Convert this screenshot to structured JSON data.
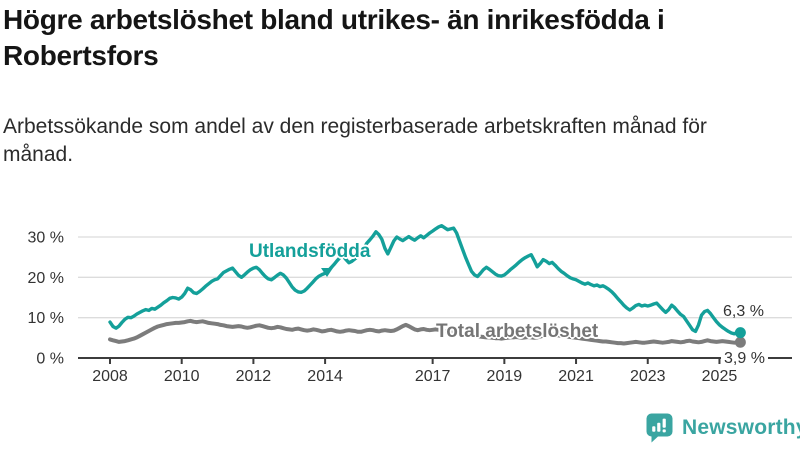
{
  "header": {
    "title": "Högre arbetslöshet bland utrikes- än inrikesfödda i Robertsfors",
    "subtitle": "Arbetssökande som andel av den registerbaserade arbetskraften månad för månad."
  },
  "footer": {
    "brand": "Newsworthy",
    "brand_color": "#3aa5a1",
    "icon": "newsworthy-speech-bubble-bar-chart-icon"
  },
  "colors": {
    "foreign_born_line": "#14a09a",
    "total_line": "#7c7c7c",
    "total_label_text": "#757575",
    "axis": "#3c3c3c",
    "grid": "#dcdcdc",
    "tick_text": "#333333",
    "end_label_text": "#333333"
  },
  "chart_data": {
    "type": "line",
    "title": "Högre arbetslöshet bland utrikes- än inrikesfödda i Robertsfors",
    "subtitle": "Arbetssökande som andel av den registerbaserade arbetskraften månad för månad.",
    "unit": "%",
    "grid": "horizontal-only",
    "legend_position": "inline-labels-on-lines",
    "x_start_year": 2008,
    "x_step_months": 1,
    "x_end_label_year": 2025,
    "xlim": [
      2007.9,
      2026.1
    ],
    "ylim": [
      0,
      34
    ],
    "xticks": [
      2008,
      2010,
      2012,
      2014,
      2017,
      2019,
      2021,
      2023,
      2025
    ],
    "yticks": [
      0,
      10,
      20,
      30
    ],
    "ytick_labels": [
      "0 %",
      "10 %",
      "20 %",
      "30 %"
    ],
    "series": [
      {
        "name": "Utlandsfödda",
        "color": "#14a09a",
        "end_value": 6.3,
        "end_label": "6,3 %",
        "values_by_year": [
          {
            "year": 2008,
            "values": [
              8.9,
              7.8,
              7.4,
              7.9,
              8.8,
              9.6,
              10.1,
              10.0,
              10.4,
              10.9,
              11.3,
              11.7
            ]
          },
          {
            "year": 2009,
            "values": [
              12.0,
              11.8,
              12.3,
              12.1,
              12.6,
              13.1,
              13.7,
              14.2,
              14.8,
              15.0,
              14.9,
              14.6
            ]
          },
          {
            "year": 2010,
            "values": [
              15.1,
              16.0,
              17.3,
              16.9,
              16.2,
              16.0,
              16.5,
              17.1,
              17.8,
              18.4,
              19.0,
              19.4
            ]
          },
          {
            "year": 2011,
            "values": [
              19.6,
              20.4,
              21.2,
              21.6,
              22.0,
              22.3,
              21.4,
              20.5,
              20.0,
              20.6,
              21.3,
              21.9
            ]
          },
          {
            "year": 2012,
            "values": [
              22.3,
              22.5,
              21.9,
              21.0,
              20.2,
              19.6,
              19.4,
              19.9,
              20.5,
              21.0,
              20.6,
              19.8
            ]
          },
          {
            "year": 2013,
            "values": [
              18.7,
              17.6,
              16.8,
              16.4,
              16.3,
              16.6,
              17.3,
              18.1,
              18.9,
              19.7,
              20.3,
              20.7
            ]
          },
          {
            "year": 2014,
            "values": [
              21.0,
              21.6,
              22.4,
              23.2,
              24.1,
              24.9,
              25.3,
              24.4,
              23.6,
              24.0,
              24.6,
              25.2
            ]
          },
          {
            "year": 2015,
            "values": [
              26.0,
              27.2,
              28.5,
              29.3,
              30.2,
              31.3,
              30.6,
              29.4,
              27.2,
              25.8,
              27.4,
              29.0
            ]
          },
          {
            "year": 2016,
            "values": [
              30.0,
              29.5,
              29.1,
              29.6,
              30.1,
              29.6,
              29.2,
              29.8,
              30.3,
              29.8,
              30.4,
              31.0
            ]
          },
          {
            "year": 2017,
            "values": [
              31.5,
              32.0,
              32.5,
              32.8,
              32.3,
              31.8,
              32.0,
              32.2,
              31.0,
              29.0,
              27.0,
              25.0
            ]
          },
          {
            "year": 2018,
            "values": [
              23.2,
              21.5,
              20.6,
              20.2,
              21.0,
              21.9,
              22.5,
              22.0,
              21.4,
              20.8,
              20.4,
              20.3
            ]
          },
          {
            "year": 2019,
            "values": [
              20.6,
              21.2,
              21.9,
              22.5,
              23.1,
              23.8,
              24.4,
              24.9,
              25.3,
              25.6,
              24.2,
              22.6
            ]
          },
          {
            "year": 2020,
            "values": [
              23.4,
              24.4,
              24.0,
              23.4,
              23.7,
              23.0,
              22.2,
              21.5,
              21.0,
              20.4,
              19.9,
              19.6
            ]
          },
          {
            "year": 2021,
            "values": [
              19.4,
              19.0,
              18.6,
              18.3,
              18.6,
              18.2,
              17.9,
              18.1,
              17.7,
              17.9,
              17.5,
              17.0
            ]
          },
          {
            "year": 2022,
            "values": [
              16.4,
              15.6,
              14.7,
              13.9,
              13.1,
              12.4,
              11.9,
              12.4,
              13.0,
              13.3,
              12.9,
              13.1
            ]
          },
          {
            "year": 2023,
            "values": [
              12.9,
              13.1,
              13.4,
              13.6,
              12.8,
              12.0,
              11.3,
              12.0,
              13.1,
              12.5,
              11.6,
              10.8
            ]
          },
          {
            "year": 2024,
            "values": [
              10.3,
              9.2,
              8.1,
              7.0,
              6.6,
              8.2,
              10.6,
              11.5,
              11.8,
              11.0,
              10.0,
              9.0
            ]
          },
          {
            "year": 2025,
            "values": [
              8.2,
              7.6,
              7.1,
              6.6,
              6.2,
              6.0,
              6.4,
              6.3
            ]
          }
        ]
      },
      {
        "name": "Total arbetslöshet",
        "color": "#7c7c7c",
        "end_value": 3.9,
        "end_label": "3,9 %",
        "values_by_year": [
          {
            "year": 2008,
            "values": [
              4.6,
              4.4,
              4.2,
              4.0,
              4.1,
              4.2,
              4.4,
              4.6,
              4.8,
              5.1,
              5.5,
              5.9
            ]
          },
          {
            "year": 2009,
            "values": [
              6.3,
              6.7,
              7.1,
              7.5,
              7.8,
              8.0,
              8.2,
              8.4,
              8.5,
              8.6,
              8.7,
              8.7
            ]
          },
          {
            "year": 2010,
            "values": [
              8.8,
              8.9,
              9.1,
              9.2,
              9.0,
              8.9,
              9.0,
              9.1,
              8.9,
              8.7,
              8.6,
              8.5
            ]
          },
          {
            "year": 2011,
            "values": [
              8.4,
              8.2,
              8.1,
              7.9,
              7.8,
              7.7,
              7.8,
              7.9,
              7.8,
              7.6,
              7.5,
              7.6
            ]
          },
          {
            "year": 2012,
            "values": [
              7.8,
              8.0,
              8.1,
              7.9,
              7.7,
              7.5,
              7.4,
              7.5,
              7.7,
              7.6,
              7.4,
              7.2
            ]
          },
          {
            "year": 2013,
            "values": [
              7.1,
              7.0,
              7.2,
              7.3,
              7.1,
              6.9,
              6.8,
              6.9,
              7.1,
              7.0,
              6.8,
              6.6
            ]
          },
          {
            "year": 2014,
            "values": [
              6.7,
              6.9,
              7.0,
              6.8,
              6.6,
              6.5,
              6.6,
              6.8,
              6.9,
              6.8,
              6.7,
              6.5
            ]
          },
          {
            "year": 2015,
            "values": [
              6.5,
              6.7,
              6.9,
              7.0,
              6.9,
              6.7,
              6.6,
              6.8,
              6.9,
              6.8,
              6.7,
              6.8
            ]
          },
          {
            "year": 2016,
            "values": [
              7.1,
              7.5,
              7.9,
              8.2,
              7.9,
              7.5,
              7.1,
              6.9,
              7.1,
              7.2,
              7.0,
              6.9
            ]
          },
          {
            "year": 2017,
            "values": [
              7.0,
              7.1,
              7.0,
              6.9,
              6.7,
              6.5,
              6.4,
              6.3,
              6.1,
              6.0,
              5.9,
              5.8
            ]
          },
          {
            "year": 2018,
            "values": [
              5.7,
              5.6,
              5.5,
              5.4,
              5.3,
              5.2,
              5.1,
              5.1,
              5.0,
              4.9,
              4.9,
              4.8
            ]
          },
          {
            "year": 2019,
            "values": [
              4.9,
              5.0,
              5.1,
              5.1,
              5.2,
              5.1,
              5.0,
              5.1,
              5.2,
              5.1,
              5.0,
              5.1
            ]
          },
          {
            "year": 2020,
            "values": [
              5.3,
              5.5,
              5.7,
              5.9,
              5.8,
              5.7,
              5.6,
              5.5,
              5.4,
              5.3,
              5.2,
              5.1
            ]
          },
          {
            "year": 2021,
            "values": [
              5.0,
              4.9,
              4.8,
              4.7,
              4.6,
              4.5,
              4.4,
              4.3,
              4.2,
              4.1,
              4.1,
              4.0
            ]
          },
          {
            "year": 2022,
            "values": [
              3.9,
              3.8,
              3.7,
              3.7,
              3.6,
              3.7,
              3.8,
              3.9,
              4.0,
              3.9,
              3.8,
              3.8
            ]
          },
          {
            "year": 2023,
            "values": [
              3.9,
              4.0,
              4.1,
              4.0,
              3.9,
              3.8,
              3.9,
              4.0,
              4.2,
              4.1,
              4.0,
              3.9
            ]
          },
          {
            "year": 2024,
            "values": [
              4.0,
              4.2,
              4.3,
              4.1,
              4.0,
              3.9,
              4.0,
              4.2,
              4.4,
              4.2,
              4.1,
              4.0
            ]
          },
          {
            "year": 2025,
            "values": [
              4.1,
              4.2,
              4.1,
              4.0,
              3.9,
              3.8,
              3.9,
              3.9
            ]
          }
        ]
      }
    ]
  }
}
